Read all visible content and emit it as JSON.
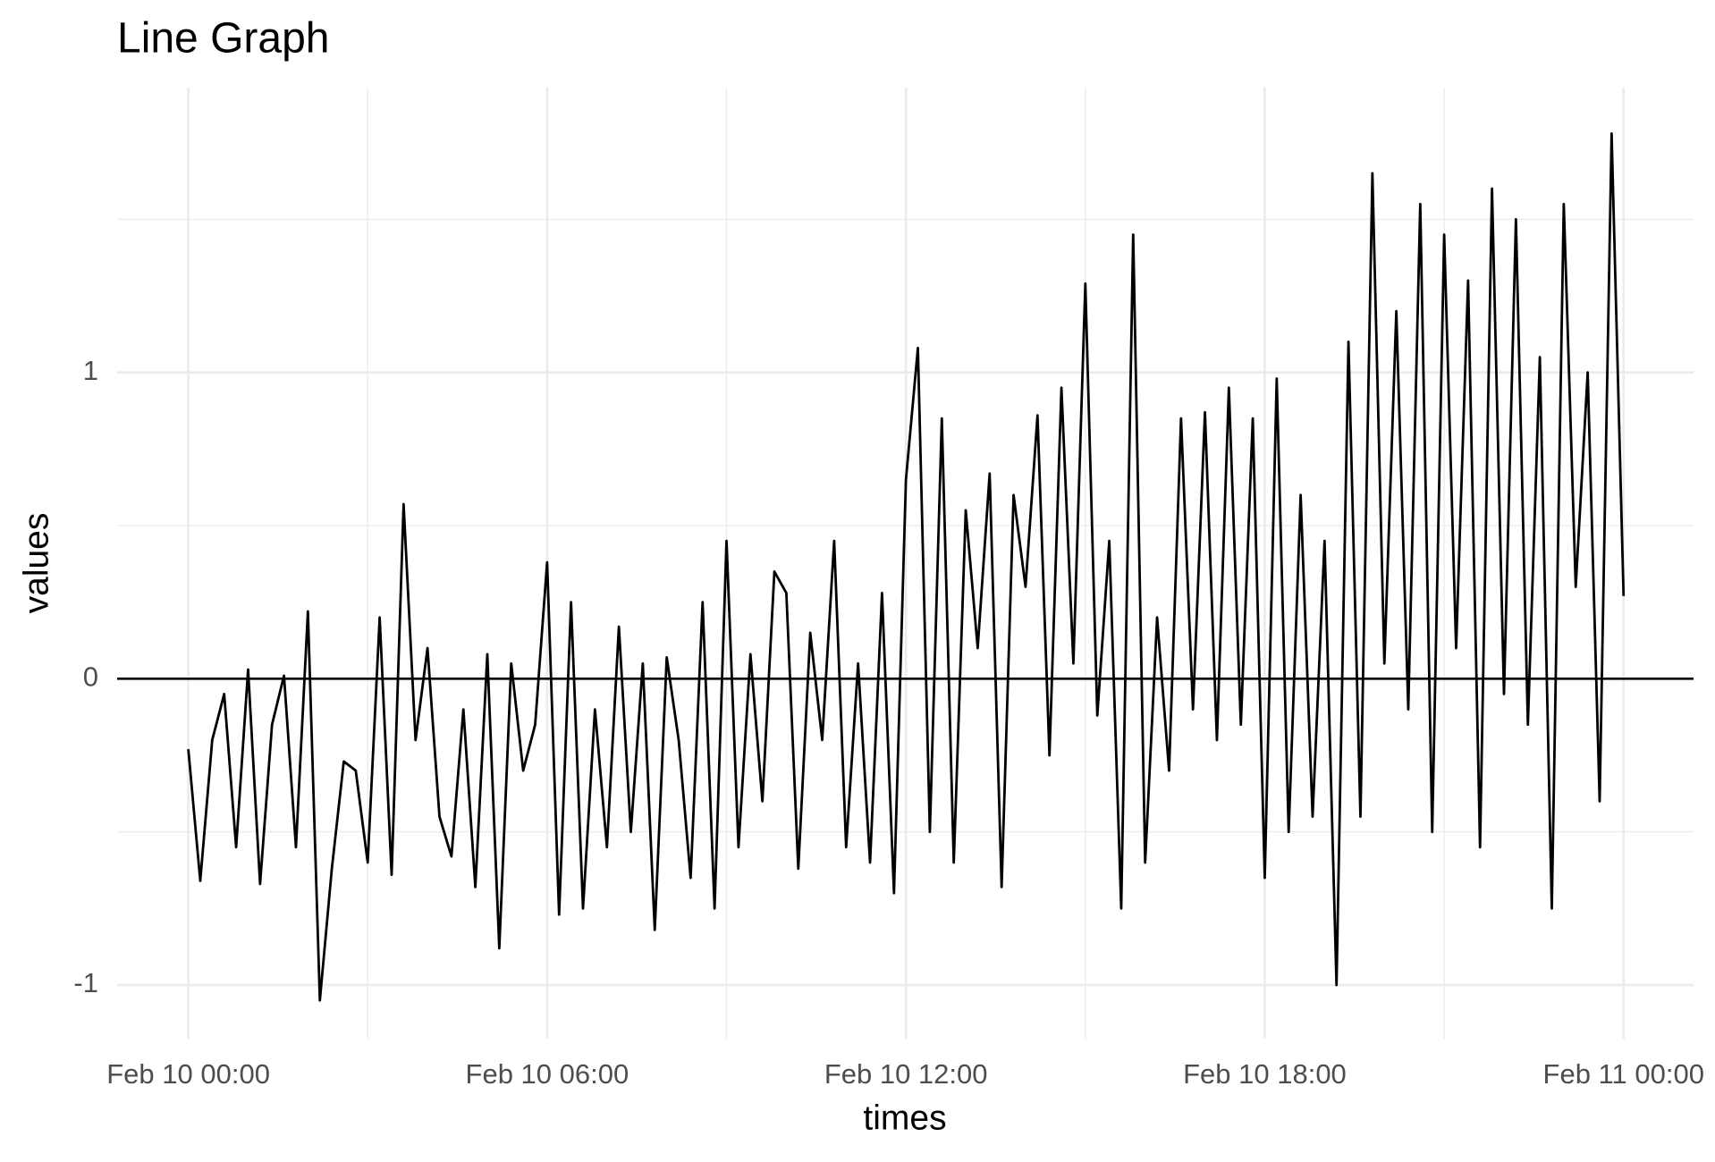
{
  "chart_data": {
    "type": "line",
    "title": "Line Graph",
    "x_label": "times",
    "y_label": "values",
    "x": [
      0,
      0.2,
      0.4,
      0.6,
      0.8,
      1,
      1.2,
      1.4,
      1.6,
      1.8,
      2,
      2.2,
      2.4,
      2.6,
      2.8,
      3,
      3.2,
      3.4,
      3.6,
      3.8,
      4,
      4.2,
      4.4,
      4.6,
      4.8,
      5,
      5.2,
      5.4,
      5.6,
      5.8,
      6,
      6.2,
      6.4,
      6.6,
      6.8,
      7,
      7.2,
      7.4,
      7.6,
      7.8,
      8,
      8.2,
      8.4,
      8.6,
      8.8,
      9,
      9.2,
      9.4,
      9.6,
      9.8,
      10,
      10.2,
      10.4,
      10.6,
      10.8,
      11,
      11.2,
      11.4,
      11.6,
      11.8,
      12,
      12.2,
      12.4,
      12.6,
      12.8,
      13,
      13.2,
      13.4,
      13.6,
      13.8,
      14,
      14.2,
      14.4,
      14.6,
      14.8,
      15,
      15.2,
      15.4,
      15.6,
      15.8,
      16,
      16.2,
      16.4,
      16.6,
      16.8,
      17,
      17.2,
      17.4,
      17.6,
      17.8,
      18,
      18.2,
      18.4,
      18.6,
      18.8,
      19,
      19.2,
      19.4,
      19.6,
      19.8,
      20,
      20.2,
      20.4,
      20.6,
      20.8,
      21,
      21.2,
      21.4,
      21.6,
      21.8,
      22,
      22.2,
      22.4,
      22.6,
      22.8,
      23,
      23.2,
      23.4,
      23.6,
      23.8,
      24
    ],
    "series": [
      {
        "name": "values",
        "color": "#000000",
        "values": [
          -0.23,
          -0.66,
          -0.2,
          -0.05,
          -0.55,
          0.03,
          -0.67,
          -0.15,
          0.01,
          -0.55,
          0.22,
          -1.05,
          -0.62,
          -0.27,
          -0.3,
          -0.6,
          0.2,
          -0.64,
          0.57,
          -0.2,
          0.1,
          -0.45,
          -0.58,
          -0.1,
          -0.68,
          0.08,
          -0.88,
          0.05,
          -0.3,
          -0.15,
          0.38,
          -0.77,
          0.25,
          -0.75,
          -0.1,
          -0.55,
          0.17,
          -0.5,
          0.05,
          -0.82,
          0.07,
          -0.2,
          -0.65,
          0.25,
          -0.75,
          0.45,
          -0.55,
          0.08,
          -0.4,
          0.35,
          0.28,
          -0.62,
          0.15,
          -0.2,
          0.45,
          -0.55,
          0.05,
          -0.6,
          0.28,
          -0.7,
          0.65,
          1.08,
          -0.5,
          0.85,
          -0.6,
          0.55,
          0.1,
          0.67,
          -0.68,
          0.6,
          0.3,
          0.86,
          -0.25,
          0.95,
          0.05,
          1.29,
          -0.12,
          0.45,
          -0.75,
          1.45,
          -0.6,
          0.2,
          -0.3,
          0.85,
          -0.1,
          0.87,
          -0.2,
          0.95,
          -0.15,
          0.85,
          -0.65,
          0.98,
          -0.5,
          0.6,
          -0.45,
          0.45,
          -1.0,
          1.1,
          -0.45,
          1.65,
          0.05,
          1.2,
          -0.1,
          1.55,
          -0.5,
          1.45,
          0.1,
          1.3,
          -0.55,
          1.6,
          -0.05,
          1.5,
          -0.15,
          1.05,
          -0.75,
          1.55,
          0.3,
          1.0,
          -0.4,
          1.78,
          0.27
        ]
      }
    ],
    "xlim": [
      -1.19,
      25.17
    ],
    "ylim": [
      -1.175,
      1.93
    ],
    "xticks": [
      {
        "value": 0,
        "label": "Feb 10 00:00"
      },
      {
        "value": 6,
        "label": "Feb 10 06:00"
      },
      {
        "value": 12,
        "label": "Feb 10 12:00"
      },
      {
        "value": 18,
        "label": "Feb 10 18:00"
      },
      {
        "value": 24,
        "label": "Feb 11 00:00"
      }
    ],
    "yticks": [
      -1,
      0,
      1
    ],
    "x_minor_ticks": [
      3,
      9,
      15,
      21
    ],
    "y_minor_ticks": [
      -0.5,
      0.5,
      1.5
    ],
    "hline": 0,
    "grid": true
  }
}
